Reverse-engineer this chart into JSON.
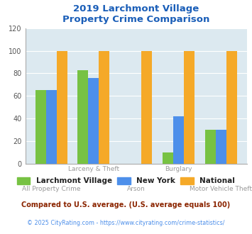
{
  "title": "2019 Larchmont Village\nProperty Crime Comparison",
  "larchmont": [
    65,
    83,
    0,
    10,
    30
  ],
  "new_york": [
    65,
    76,
    0,
    42,
    30
  ],
  "national": [
    100,
    100,
    100,
    100,
    100
  ],
  "bar_colors": {
    "larchmont": "#77c243",
    "new_york": "#4d8fea",
    "national": "#f5a928"
  },
  "ylim": [
    0,
    120
  ],
  "yticks": [
    0,
    20,
    40,
    60,
    80,
    100,
    120
  ],
  "xtick_top": [
    "",
    "Larceny & Theft",
    "",
    "Burglary",
    ""
  ],
  "xtick_bot": [
    "All Property Crime",
    "",
    "Arson",
    "",
    "Motor Vehicle Theft"
  ],
  "legend_labels": [
    "Larchmont Village",
    "New York",
    "National"
  ],
  "footnote1": "Compared to U.S. average. (U.S. average equals 100)",
  "footnote2": "© 2025 CityRating.com - https://www.cityrating.com/crime-statistics/",
  "title_color": "#1a5eb8",
  "footnote1_color": "#8b2500",
  "footnote2_color": "#4d8fea",
  "plot_bg": "#dce9f0",
  "bar_width": 0.25
}
